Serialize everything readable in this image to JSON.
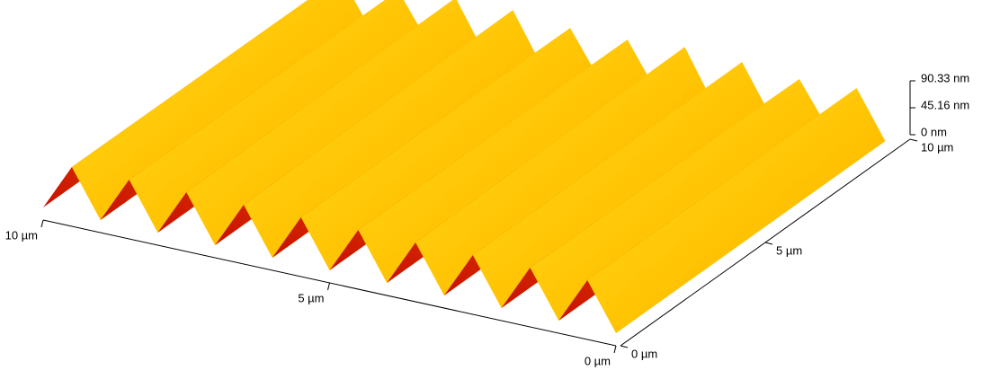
{
  "chart_data": {
    "type": "surface",
    "xlim": [
      0,
      10
    ],
    "xticks": [
      {
        "value": 0,
        "label": "0 µm"
      },
      {
        "value": 5,
        "label": "5 µm"
      },
      {
        "value": 10,
        "label": "10 µm"
      }
    ],
    "ylim": [
      0,
      10
    ],
    "yticks": [
      {
        "value": 0,
        "label": "0 µm"
      },
      {
        "value": 5,
        "label": "5 µm"
      },
      {
        "value": 10,
        "label": "10 µm"
      }
    ],
    "zlim": [
      0,
      90.33
    ],
    "zticks": [
      {
        "value": 0,
        "label": "0 nm"
      },
      {
        "value": 45.16,
        "label": "45.16 nm"
      },
      {
        "value": 90.33,
        "label": "90.33 nm"
      }
    ]
  }
}
